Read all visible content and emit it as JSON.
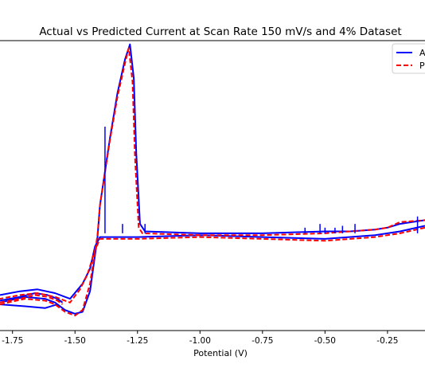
{
  "chart_data": {
    "type": "line",
    "title": "Actual vs Predicted Current at Scan Rate 150 mV/s and 4% Dataset",
    "xlabel": "Potential (V)",
    "ylabel": "",
    "xlim": [
      -1.8,
      -0.1
    ],
    "ylim": [
      -0.55,
      1.0
    ],
    "x_ticks": [
      -1.75,
      -1.5,
      -1.25,
      -1.0,
      -0.75,
      -0.5,
      -0.25
    ],
    "x_tick_labels": [
      "-1.75",
      "-1.50",
      "-1.25",
      "-1.00",
      "-0.75",
      "-0.50",
      "-0.25"
    ],
    "grid": false,
    "legend_position": "top-right",
    "legend_labels": [
      "A",
      "P"
    ],
    "series": [
      {
        "color": "#0000ff",
        "style": "solid",
        "segments": [
          {
            "x": [
              -1.8,
              -1.7,
              -1.62,
              -1.58,
              -1.54,
              -1.5,
              -1.47,
              -1.44,
              -1.41,
              -1.4,
              -1.36,
              -1.33,
              -1.3,
              -1.28,
              -1.265,
              -1.255,
              -1.24,
              -1.22,
              -1.0,
              -0.75,
              -0.5,
              -0.4,
              -0.3,
              -0.25,
              -0.2,
              -0.1
            ],
            "y": [
              -0.4,
              -0.37,
              -0.38,
              -0.4,
              -0.44,
              -0.46,
              -0.45,
              -0.34,
              -0.05,
              0.12,
              0.48,
              0.72,
              0.9,
              0.98,
              0.8,
              0.4,
              0.02,
              -0.02,
              -0.03,
              -0.03,
              -0.02,
              -0.02,
              -0.01,
              0.0,
              0.02,
              0.04
            ]
          },
          {
            "x": [
              -0.1,
              -0.2,
              -0.3,
              -0.5,
              -0.75,
              -1.0,
              -1.25,
              -1.4,
              -1.42,
              -1.44,
              -1.47,
              -1.52,
              -1.58,
              -1.65,
              -1.72,
              -1.8
            ],
            "y": [
              0.01,
              -0.02,
              -0.04,
              -0.06,
              -0.05,
              -0.04,
              -0.05,
              -0.05,
              -0.1,
              -0.22,
              -0.3,
              -0.38,
              -0.35,
              -0.33,
              -0.34,
              -0.36
            ]
          },
          {
            "x": [
              -1.8,
              -1.72,
              -1.66,
              -1.61,
              -1.57,
              -1.55
            ],
            "y": [
              -0.39,
              -0.37,
              -0.35,
              -0.36,
              -0.38,
              -0.4
            ]
          },
          {
            "x": [
              -1.8,
              -1.7,
              -1.62,
              -1.57
            ],
            "y": [
              -0.41,
              -0.42,
              -0.43,
              -0.41
            ]
          }
        ]
      },
      {
        "color": "#ff0000",
        "style": "dashed",
        "segments": [
          {
            "x": [
              -1.8,
              -1.7,
              -1.62,
              -1.58,
              -1.54,
              -1.5,
              -1.47,
              -1.44,
              -1.41,
              -1.4,
              -1.36,
              -1.33,
              -1.3,
              -1.285,
              -1.27,
              -1.26,
              -1.245,
              -1.23,
              -1.0,
              -0.75,
              -0.5,
              -0.4,
              -0.3,
              -0.25,
              -0.2,
              -0.1
            ],
            "y": [
              -0.41,
              -0.38,
              -0.39,
              -0.41,
              -0.45,
              -0.47,
              -0.44,
              -0.3,
              -0.04,
              0.12,
              0.47,
              0.7,
              0.88,
              0.96,
              0.78,
              0.38,
              0.0,
              -0.03,
              -0.04,
              -0.04,
              -0.03,
              -0.02,
              -0.01,
              0.0,
              0.03,
              0.04
            ]
          },
          {
            "x": [
              -0.1,
              -0.2,
              -0.3,
              -0.5,
              -0.75,
              -1.0,
              -1.25,
              -1.4,
              -1.42,
              -1.45,
              -1.48,
              -1.52,
              -1.58,
              -1.65,
              -1.72,
              -1.8
            ],
            "y": [
              0.0,
              -0.03,
              -0.05,
              -0.07,
              -0.06,
              -0.05,
              -0.06,
              -0.06,
              -0.12,
              -0.25,
              -0.33,
              -0.4,
              -0.37,
              -0.35,
              -0.36,
              -0.38
            ]
          },
          {
            "x": [
              -1.8,
              -1.72,
              -1.66,
              -1.61,
              -1.57,
              -1.55
            ],
            "y": [
              -0.4,
              -0.38,
              -0.36,
              -0.37,
              -0.39,
              -0.41
            ]
          }
        ]
      }
    ],
    "spikes": {
      "color": "#0000ff",
      "points": [
        {
          "x": -1.38,
          "y": 0.54
        },
        {
          "x": -1.31,
          "y": 0.02
        },
        {
          "x": -1.22,
          "y": 0.02
        },
        {
          "x": -0.58,
          "y": 0.0
        },
        {
          "x": -0.52,
          "y": 0.02
        },
        {
          "x": -0.5,
          "y": 0.0
        },
        {
          "x": -0.46,
          "y": 0.0
        },
        {
          "x": -0.43,
          "y": 0.01
        },
        {
          "x": -0.38,
          "y": 0.02
        },
        {
          "x": -0.13,
          "y": 0.06
        }
      ]
    }
  }
}
